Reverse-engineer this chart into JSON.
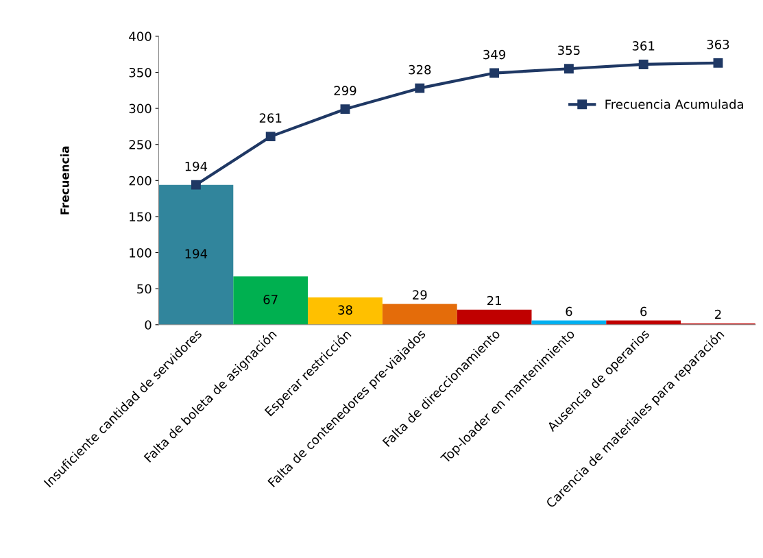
{
  "chart_data": {
    "type": "bar",
    "ylabel": "Frecuencia",
    "categories": [
      "Insuficiente cantidad de servidores",
      "Falta de boleta de asignación",
      "Esperar restricción",
      "Falta de contenedores pre-viajados",
      "Falta de direccionamiento",
      "Top-loader en mantenimiento",
      "Ausencia de operarios",
      "Carencia de materiales para reparación"
    ],
    "series": [
      {
        "colors": [
          "#31859c",
          "#00b050",
          "#ffc000",
          "#e46c0a",
          "#c00000",
          "#00b0f0",
          "#c00000",
          "#c00000"
        ],
        "values": [
          194,
          67,
          38,
          29,
          21,
          6,
          6,
          2
        ]
      },
      {
        "type": "line",
        "name": "Frecuencia Acumulada",
        "color": "#1f3864",
        "values": [
          194,
          261,
          299,
          328,
          349,
          355,
          361,
          363
        ]
      }
    ],
    "ylim": [
      0,
      400
    ],
    "yticks": [
      0,
      50,
      100,
      150,
      200,
      250,
      300,
      350,
      400
    ],
    "data_labels": true,
    "grid": false,
    "legend": "top right",
    "marker": "square",
    "line_style": "solid"
  }
}
